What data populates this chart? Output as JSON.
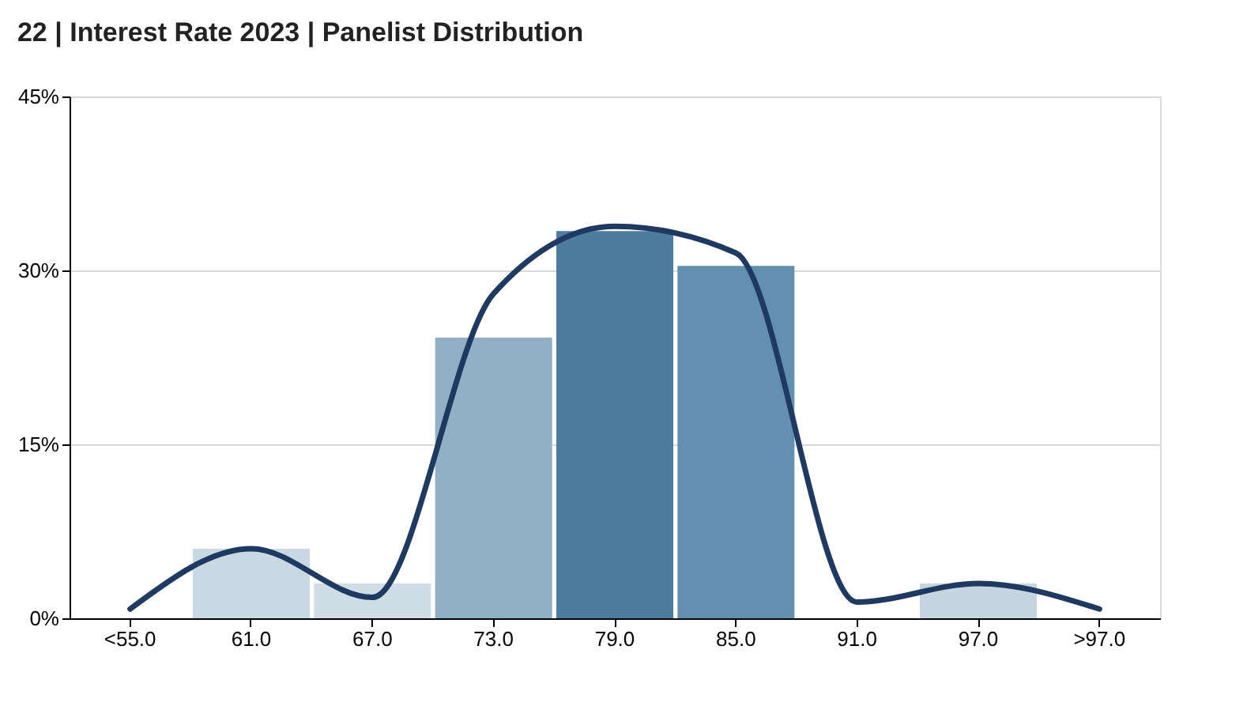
{
  "chart_data": {
    "type": "bar",
    "title": "22 | Interest Rate 2023 | Panelist Distribution",
    "categories": [
      "<55.0",
      "61.0",
      "67.0",
      "73.0",
      "79.0",
      "85.0",
      "91.0",
      "97.0",
      ">97.0"
    ],
    "series": [
      {
        "type": "bar",
        "colors": [
          "#c9d9e3",
          "#c9d9e3",
          "#cfdde6",
          "#8fb0c5",
          "#4e7c9e",
          "#6390b0",
          "#c9d9e3",
          "#c5d6e1",
          "#c9d9e3"
        ],
        "values": [
          null,
          6,
          3,
          24.2,
          33.4,
          30.4,
          null,
          3,
          null
        ]
      },
      {
        "type": "line",
        "color": "#1f3a60",
        "values": [
          0.8,
          6,
          1.8,
          28,
          33.8,
          31.5,
          1.4,
          3,
          0.8
        ]
      }
    ],
    "ylim": [
      0,
      45
    ],
    "yticks": [
      {
        "value": 0,
        "label": "0%"
      },
      {
        "value": 15,
        "label": "15%"
      },
      {
        "value": 30,
        "label": "30%"
      },
      {
        "value": 45,
        "label": "45%"
      }
    ],
    "grid": "y",
    "legend": false,
    "marker": "none",
    "line_style": "solid"
  }
}
